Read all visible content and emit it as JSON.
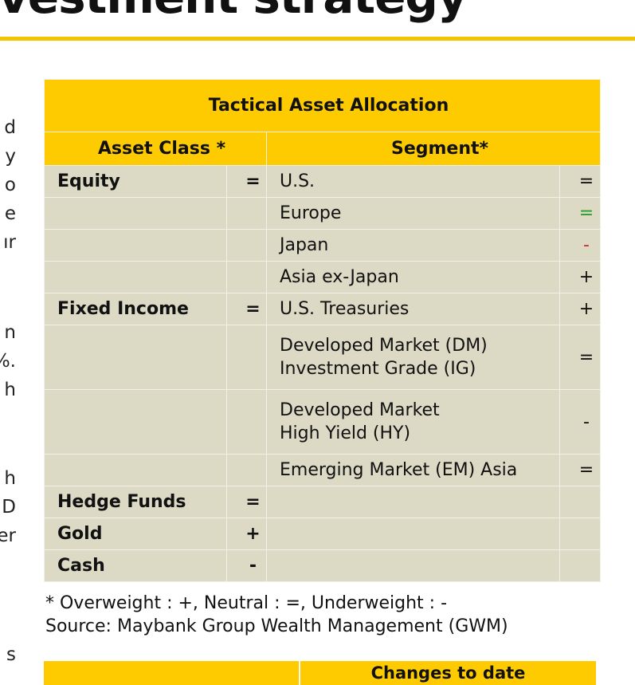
{
  "heading": {
    "fragment": "vestment strategy"
  },
  "left_fragments": [
    "d",
    "y",
    "o",
    "e",
    "ır",
    "n",
    "%.",
    "h",
    "h",
    "D",
    "er",
    "s"
  ],
  "table": {
    "title": "Tactical Asset Allocation",
    "asset_class_header": "Asset Class *",
    "segment_header": "Segment*",
    "rows": [
      {
        "asset_class": "Equity",
        "asset_sym": "=",
        "segment": [
          "U.S."
        ],
        "seg_sym": "=",
        "seg_color": ""
      },
      {
        "asset_class": "",
        "asset_sym": "",
        "segment": [
          "Europe"
        ],
        "seg_sym": "=",
        "seg_color": "green"
      },
      {
        "asset_class": "",
        "asset_sym": "",
        "segment": [
          "Japan"
        ],
        "seg_sym": "-",
        "seg_color": "red"
      },
      {
        "asset_class": "",
        "asset_sym": "",
        "segment": [
          "Asia ex-Japan"
        ],
        "seg_sym": "+",
        "seg_color": ""
      },
      {
        "asset_class": "Fixed Income",
        "asset_sym": "=",
        "segment": [
          "U.S. Treasuries"
        ],
        "seg_sym": "+",
        "seg_color": ""
      },
      {
        "asset_class": "",
        "asset_sym": "",
        "segment": [
          "Developed Market (DM)",
          "Investment Grade (IG)"
        ],
        "seg_sym": "=",
        "seg_color": ""
      },
      {
        "asset_class": "",
        "asset_sym": "",
        "segment": [
          "Developed Market",
          "High Yield (HY)"
        ],
        "seg_sym": "-",
        "seg_color": ""
      },
      {
        "asset_class": "",
        "asset_sym": "",
        "segment": [
          "Emerging Market (EM) Asia"
        ],
        "seg_sym": "=",
        "seg_color": ""
      },
      {
        "asset_class": "Hedge Funds",
        "asset_sym": "=",
        "segment": [
          ""
        ],
        "seg_sym": "",
        "seg_color": ""
      },
      {
        "asset_class": "Gold",
        "asset_sym": "+",
        "segment": [
          ""
        ],
        "seg_sym": "",
        "seg_color": ""
      },
      {
        "asset_class": "Cash",
        "asset_sym": "-",
        "segment": [
          ""
        ],
        "seg_sym": "",
        "seg_color": ""
      }
    ]
  },
  "notes": {
    "legend": "* Overweight : +, Neutral : =, Underweight : -",
    "source": "Source: Maybank Group Wealth Management (GWM)"
  },
  "bottom_table": {
    "header_right": "Changes to date"
  },
  "colors": {
    "accent": "#fecb00",
    "row_bg": "#dcd9c5",
    "green": "#2e9e2e",
    "red": "#d22a2a"
  }
}
